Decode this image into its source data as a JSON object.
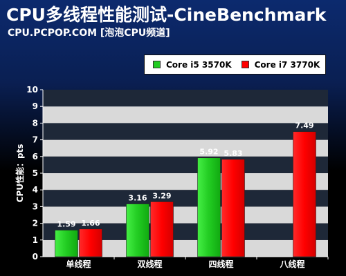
{
  "header": {
    "title": "CPU多线程性能测试-CineBenchmark",
    "subtitle": "CPU.PCPOP.COM [泡泡CPU频道]"
  },
  "colors": {
    "i5": "#22cc22",
    "i7": "#ff0000",
    "band_light": "#d9d9d9",
    "band_dark": "#1e2838"
  },
  "chart_data": {
    "type": "bar",
    "title": "CPU多线程性能测试-CineBenchmark",
    "ylabel": "CPU性能：pts",
    "xlabel": "",
    "ylim": [
      0,
      10
    ],
    "yticks": [
      "0",
      "1",
      "2",
      "3",
      "4",
      "5",
      "6",
      "7",
      "8",
      "9",
      "10"
    ],
    "categories": [
      "单线程",
      "双线程",
      "四线程",
      "八线程"
    ],
    "legend_position": "top-right",
    "grid": true,
    "series": [
      {
        "name": "Core i5 3570K",
        "color": "#22cc22",
        "values": [
          1.59,
          3.16,
          5.92,
          null
        ]
      },
      {
        "name": "Core i7 3770K",
        "color": "#ff0000",
        "values": [
          1.66,
          3.29,
          5.83,
          7.49
        ]
      }
    ],
    "labels": [
      [
        "1.59",
        "3.16",
        "5.92",
        ""
      ],
      [
        "1.66",
        "3.29",
        "5.83",
        "7.49"
      ]
    ]
  }
}
